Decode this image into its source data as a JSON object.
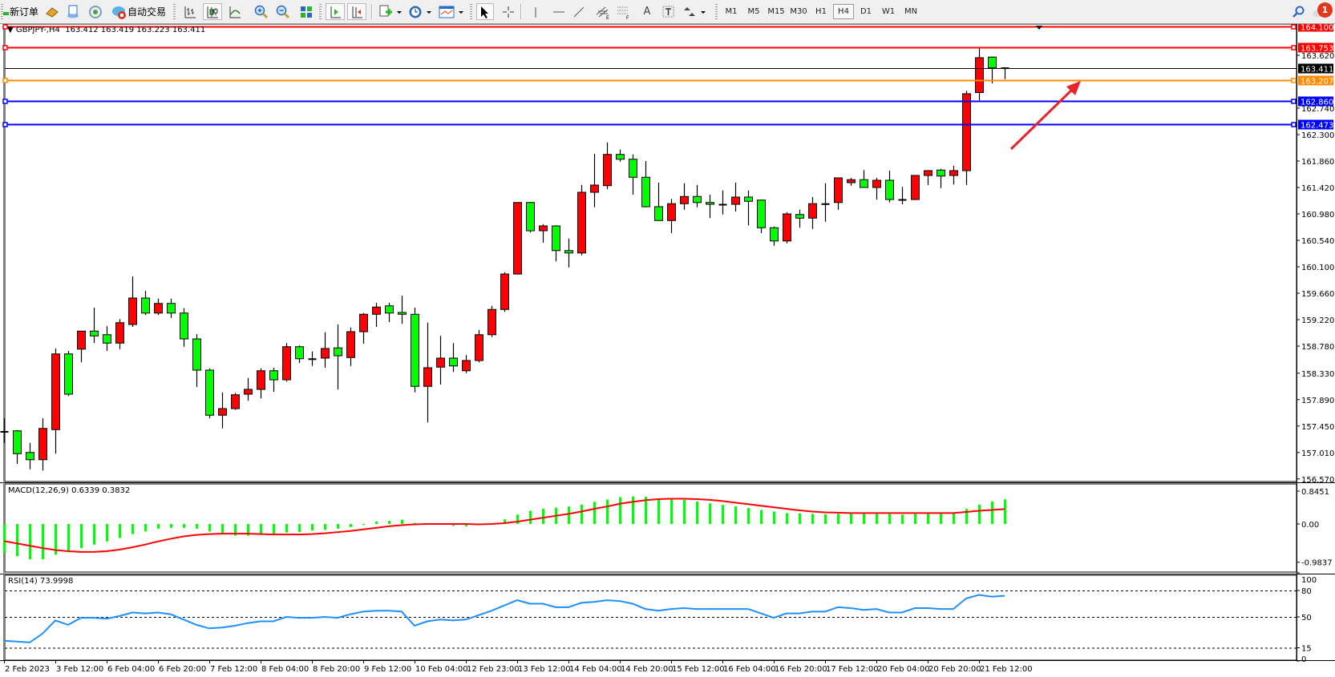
{
  "toolbar": {
    "new_order": "新订单",
    "auto_trading": "自动交易",
    "text_tool": "A",
    "timeframes": [
      "M1",
      "M5",
      "M15",
      "M30",
      "H1",
      "H4",
      "D1",
      "W1",
      "MN"
    ],
    "active_timeframe": "H4",
    "notification_count": "1",
    "icons": [
      "new-order-icon",
      "market-watch-icon",
      "data-window-icon",
      "navigator-icon",
      "auto-trading-icon",
      "bar-chart-icon",
      "candlestick-icon",
      "line-chart-icon",
      "zoom-in-icon",
      "zoom-out-icon",
      "tile-windows-icon",
      "auto-scroll-icon",
      "chart-shift-icon",
      "indicators-icon",
      "periods-icon",
      "templates-icon",
      "cursor-icon",
      "crosshair-icon",
      "vertical-line-icon",
      "horizontal-line-icon",
      "trend-line-icon",
      "equidistant-channel-icon",
      "fibonacci-icon",
      "text-icon",
      "text-label-icon",
      "arrows-icon",
      "search-icon",
      "chat-icon"
    ]
  },
  "header": {
    "symbol": "GBPJPY-,H4",
    "values": "163.412 163.419 163.223 163.411"
  },
  "colors": {
    "bull": "#ff0000",
    "bear": "#00ff00",
    "macd_hist": "#00ff00",
    "macd_signal": "#ff0000",
    "rsi": "#1e90ff",
    "arrow": "#e8232a"
  },
  "chart_data": [
    {
      "type": "candlestick",
      "symbol": "GBPJPY-",
      "timeframe": "H4",
      "x_tick_labels": [
        "2 Feb 2023",
        "3 Feb 12:00",
        "6 Feb 04:00",
        "6 Feb 20:00",
        "7 Feb 12:00",
        "8 Feb 04:00",
        "8 Feb 20:00",
        "9 Feb 12:00",
        "10 Feb 04:00",
        "12 Feb 23:00",
        "13 Feb 12:00",
        "14 Feb 04:00",
        "14 Feb 20:00",
        "15 Feb 12:00",
        "16 Feb 04:00",
        "16 Feb 20:00",
        "17 Feb 12:00",
        "20 Feb 04:00",
        "20 Feb 20:00",
        "21 Feb 12:00"
      ],
      "y_tick_labels": [
        "163.620",
        "162.740",
        "162.300",
        "161.860",
        "161.420",
        "160.980",
        "160.540",
        "160.100",
        "159.660",
        "159.220",
        "158.780",
        "158.330",
        "157.890",
        "157.450",
        "157.010",
        "156.570"
      ],
      "ylim": [
        156.57,
        164.12
      ],
      "ohlc": [
        [
          157.35,
          157.58,
          157.17,
          157.36
        ],
        [
          157.37,
          157.38,
          156.82,
          156.99
        ],
        [
          157.01,
          157.17,
          156.73,
          156.89
        ],
        [
          156.89,
          157.58,
          156.71,
          157.41
        ],
        [
          157.39,
          158.74,
          156.99,
          158.65
        ],
        [
          158.65,
          158.7,
          157.95,
          157.98
        ],
        [
          158.73,
          159.03,
          158.51,
          159.03
        ],
        [
          159.03,
          159.42,
          158.83,
          158.95
        ],
        [
          158.97,
          159.11,
          158.7,
          158.83
        ],
        [
          158.83,
          159.23,
          158.73,
          159.17
        ],
        [
          159.14,
          159.94,
          159.1,
          159.58
        ],
        [
          159.58,
          159.7,
          159.3,
          159.33
        ],
        [
          159.33,
          159.57,
          159.3,
          159.49
        ],
        [
          159.49,
          159.57,
          159.25,
          159.33
        ],
        [
          159.33,
          159.41,
          158.77,
          158.9
        ],
        [
          158.9,
          158.98,
          158.1,
          158.38
        ],
        [
          158.38,
          158.41,
          157.58,
          157.63
        ],
        [
          157.63,
          158.01,
          157.41,
          157.74
        ],
        [
          157.74,
          158.0,
          157.72,
          157.97
        ],
        [
          157.98,
          158.25,
          157.87,
          158.06
        ],
        [
          158.06,
          158.41,
          157.91,
          158.37
        ],
        [
          158.37,
          158.42,
          158.02,
          158.22
        ],
        [
          158.22,
          158.83,
          158.19,
          158.77
        ],
        [
          158.77,
          158.79,
          158.5,
          158.57
        ],
        [
          158.57,
          158.69,
          158.45,
          158.57
        ],
        [
          158.58,
          159.01,
          158.42,
          158.74
        ],
        [
          158.75,
          159.14,
          158.06,
          158.62
        ],
        [
          158.59,
          159.09,
          158.45,
          159.02
        ],
        [
          159.02,
          159.33,
          158.82,
          159.31
        ],
        [
          159.31,
          159.5,
          159.1,
          159.43
        ],
        [
          159.45,
          159.5,
          159.18,
          159.33
        ],
        [
          159.34,
          159.62,
          159.15,
          159.31
        ],
        [
          159.31,
          159.42,
          158.01,
          158.11
        ],
        [
          158.11,
          159.17,
          157.51,
          158.42
        ],
        [
          158.43,
          158.95,
          158.14,
          158.58
        ],
        [
          158.58,
          158.83,
          158.35,
          158.45
        ],
        [
          158.37,
          158.63,
          158.33,
          158.54
        ],
        [
          158.54,
          159.05,
          158.51,
          158.97
        ],
        [
          158.97,
          159.45,
          158.93,
          159.39
        ],
        [
          159.39,
          160.01,
          159.35,
          159.98
        ],
        [
          159.98,
          161.17,
          159.97,
          161.17
        ],
        [
          161.17,
          161.18,
          160.67,
          160.7
        ],
        [
          160.7,
          160.81,
          160.5,
          160.78
        ],
        [
          160.78,
          160.79,
          160.19,
          160.37
        ],
        [
          160.37,
          160.57,
          160.09,
          160.33
        ],
        [
          160.33,
          161.46,
          160.29,
          161.34
        ],
        [
          161.34,
          161.98,
          161.09,
          161.46
        ],
        [
          161.45,
          162.17,
          161.39,
          161.97
        ],
        [
          161.97,
          162.05,
          161.85,
          161.89
        ],
        [
          161.89,
          161.97,
          161.3,
          161.59
        ],
        [
          161.59,
          161.86,
          161.09,
          161.1
        ],
        [
          161.1,
          161.5,
          160.87,
          160.87
        ],
        [
          160.87,
          161.23,
          160.66,
          161.15
        ],
        [
          161.15,
          161.49,
          161.05,
          161.27
        ],
        [
          161.27,
          161.46,
          161.09,
          161.17
        ],
        [
          161.17,
          161.3,
          160.91,
          161.14
        ],
        [
          161.14,
          161.37,
          160.97,
          161.14
        ],
        [
          161.14,
          161.5,
          161.02,
          161.26
        ],
        [
          161.26,
          161.37,
          160.79,
          161.19
        ],
        [
          161.21,
          161.21,
          160.66,
          160.75
        ],
        [
          160.75,
          160.77,
          160.45,
          160.53
        ],
        [
          160.53,
          161.01,
          160.49,
          160.98
        ],
        [
          160.97,
          161.05,
          160.75,
          160.91
        ],
        [
          160.91,
          161.26,
          160.73,
          161.15
        ],
        [
          161.15,
          161.49,
          160.85,
          161.15
        ],
        [
          161.17,
          161.58,
          161.05,
          161.58
        ],
        [
          161.5,
          161.58,
          161.45,
          161.55
        ],
        [
          161.55,
          161.71,
          161.42,
          161.42
        ],
        [
          161.42,
          161.58,
          161.22,
          161.54
        ],
        [
          161.54,
          161.7,
          161.17,
          161.22
        ],
        [
          161.22,
          161.43,
          161.14,
          161.22
        ],
        [
          161.22,
          161.62,
          161.21,
          161.62
        ],
        [
          161.62,
          161.71,
          161.46,
          161.7
        ],
        [
          161.71,
          161.73,
          161.41,
          161.61
        ],
        [
          161.62,
          161.78,
          161.47,
          161.7
        ],
        [
          161.7,
          163.03,
          161.46,
          162.98
        ],
        [
          163.0,
          163.74,
          162.87,
          163.58
        ],
        [
          163.59,
          163.6,
          163.15,
          163.41
        ],
        [
          163.412,
          163.419,
          163.223,
          163.411
        ]
      ],
      "horizontal_lines": [
        {
          "price": 164.1,
          "label": "164.100",
          "color": "#ff0000"
        },
        {
          "price": 163.753,
          "label": "163.753",
          "color": "#ff0000"
        },
        {
          "price": 163.411,
          "label": "163.411",
          "color": "#000000"
        },
        {
          "price": 163.207,
          "label": "163.207",
          "color": "#ff8c00"
        },
        {
          "price": 162.86,
          "label": "162.860",
          "color": "#0000ff"
        },
        {
          "price": 162.473,
          "label": "162.473",
          "color": "#0000ff"
        }
      ]
    },
    {
      "type": "bar",
      "title": "MACD(12,26,9) 0.6339 0.3832",
      "y_tick_labels": [
        "0.8451",
        "0.00",
        "-0.9837"
      ],
      "ylim": [
        -0.9837,
        0.8451
      ],
      "histogram": [
        -0.75,
        -0.83,
        -0.91,
        -0.91,
        -0.79,
        -0.7,
        -0.62,
        -0.53,
        -0.45,
        -0.36,
        -0.26,
        -0.19,
        -0.12,
        -0.1,
        -0.1,
        -0.12,
        -0.19,
        -0.27,
        -0.3,
        -0.3,
        -0.28,
        -0.27,
        -0.22,
        -0.21,
        -0.17,
        -0.15,
        -0.12,
        -0.08,
        -0.01,
        0.06,
        0.08,
        0.11,
        0.03,
        -0.02,
        -0.02,
        -0.05,
        -0.06,
        -0.03,
        0.02,
        0.12,
        0.24,
        0.34,
        0.39,
        0.42,
        0.45,
        0.5,
        0.57,
        0.63,
        0.69,
        0.71,
        0.7,
        0.66,
        0.64,
        0.62,
        0.58,
        0.53,
        0.49,
        0.45,
        0.41,
        0.36,
        0.32,
        0.28,
        0.27,
        0.26,
        0.25,
        0.26,
        0.27,
        0.27,
        0.27,
        0.26,
        0.24,
        0.26,
        0.27,
        0.27,
        0.27,
        0.39,
        0.5,
        0.58,
        0.6339
      ],
      "signal": [
        -0.44,
        -0.5,
        -0.56,
        -0.62,
        -0.67,
        -0.7,
        -0.72,
        -0.72,
        -0.7,
        -0.66,
        -0.6,
        -0.53,
        -0.45,
        -0.38,
        -0.32,
        -0.28,
        -0.26,
        -0.25,
        -0.25,
        -0.25,
        -0.26,
        -0.27,
        -0.27,
        -0.27,
        -0.26,
        -0.24,
        -0.21,
        -0.18,
        -0.14,
        -0.1,
        -0.06,
        -0.03,
        -0.01,
        0.0,
        0.0,
        0.0,
        0.0,
        -0.01,
        0.0,
        0.02,
        0.06,
        0.11,
        0.16,
        0.21,
        0.26,
        0.32,
        0.39,
        0.45,
        0.52,
        0.57,
        0.61,
        0.64,
        0.65,
        0.65,
        0.64,
        0.62,
        0.59,
        0.55,
        0.51,
        0.47,
        0.43,
        0.39,
        0.35,
        0.32,
        0.3,
        0.29,
        0.28,
        0.28,
        0.28,
        0.28,
        0.28,
        0.28,
        0.28,
        0.28,
        0.28,
        0.31,
        0.34,
        0.36,
        0.3832
      ]
    },
    {
      "type": "line",
      "title": "RSI(14) 73.9998",
      "y_tick_labels": [
        "100",
        "80",
        "50",
        "15",
        "0"
      ],
      "levels": [
        80,
        50,
        15
      ],
      "ylim": [
        0,
        100
      ],
      "values": [
        23,
        22,
        21,
        31,
        46,
        41,
        49,
        49,
        48,
        51,
        55,
        54,
        55,
        53,
        47,
        41,
        37,
        38,
        40,
        43,
        45,
        45,
        50,
        49,
        49,
        50,
        49,
        53,
        56,
        57,
        57,
        56,
        40,
        45,
        47,
        46,
        47,
        52,
        57,
        63,
        69,
        65,
        65,
        61,
        61,
        66,
        67,
        69,
        68,
        65,
        59,
        57,
        59,
        60,
        59,
        59,
        59,
        59,
        59,
        54,
        49,
        54,
        54,
        56,
        56,
        61,
        60,
        58,
        59,
        55,
        55,
        60,
        60,
        59,
        59,
        71,
        75,
        73,
        73.9998
      ]
    }
  ]
}
